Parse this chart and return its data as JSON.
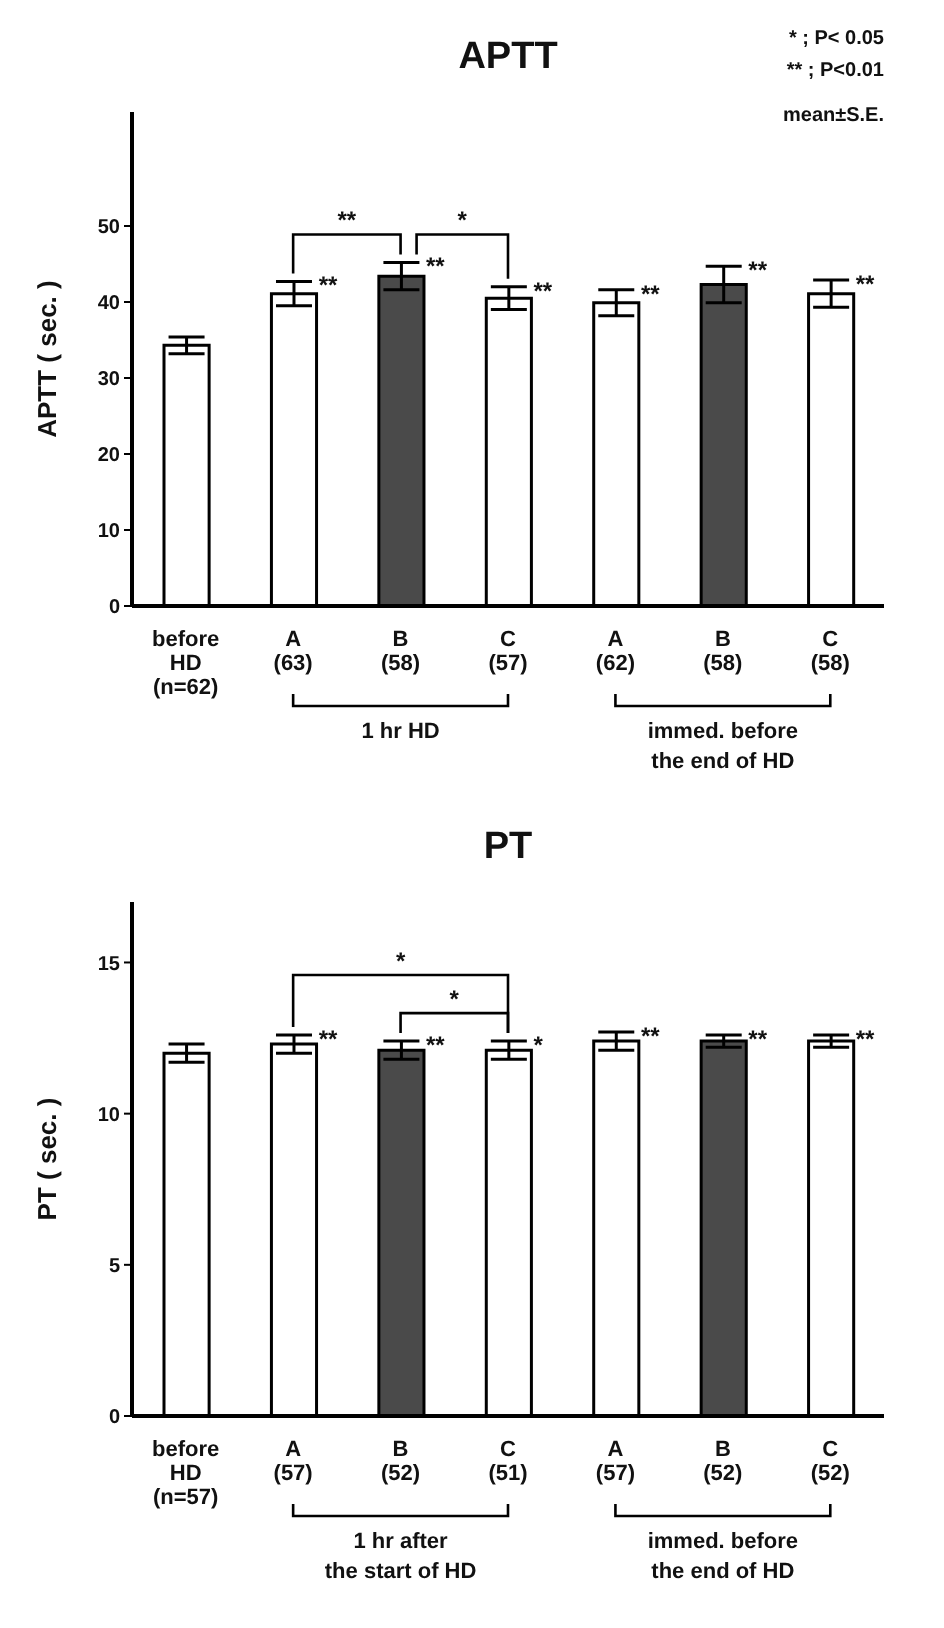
{
  "chart_data": [
    {
      "type": "bar",
      "title": "APTT",
      "ylabel": "APTT ( sec. )",
      "categories": [
        "before\nHD\n(n=62)",
        "A\n(63)",
        "B\n(58)",
        "C\n(57)",
        "A\n(62)",
        "B\n(58)",
        "C\n(58)"
      ],
      "values": [
        34.3,
        41.1,
        43.4,
        40.5,
        39.9,
        42.3,
        41.1
      ],
      "errors": [
        1.1,
        1.6,
        1.8,
        1.5,
        1.7,
        2.4,
        1.8
      ],
      "colors": [
        "#ffffff",
        "#ffffff",
        "#4a4a4a",
        "#ffffff",
        "#ffffff",
        "#4a4a4a",
        "#ffffff"
      ],
      "ylim": [
        0,
        65
      ],
      "yticks": [
        0,
        10,
        20,
        30,
        40,
        50
      ],
      "grid": false,
      "legend": false,
      "annotations": [
        "* ; P< 0.05",
        "** ; P<0.01",
        "mean±S.E.",
        "**",
        "*",
        "1 hr HD",
        "immed. before\nthe end of HD",
        {
          "text": "**",
          "x": "A\n(63)",
          "y": 42.7
        },
        {
          "text": "**",
          "x": "B\n(58)",
          "y": 45.2
        },
        {
          "text": "**",
          "x": "C\n(57)",
          "y": 42.0
        },
        {
          "text": "**",
          "x": "A\n(62)",
          "y": 41.6
        },
        {
          "text": "**",
          "x": "B\n(58)",
          "y": 44.7
        },
        {
          "text": "**",
          "x": "C\n(58)",
          "y": 42.9
        }
      ]
    },
    {
      "type": "bar",
      "title": "PT",
      "ylabel": "PT ( sec. )",
      "categories": [
        "before\nHD\n(n=57)",
        "A\n(57)",
        "B\n(52)",
        "C\n(51)",
        "A\n(57)",
        "B\n(52)",
        "C\n(52)"
      ],
      "values": [
        12.0,
        12.3,
        12.1,
        12.1,
        12.4,
        12.4,
        12.4
      ],
      "errors": [
        0.3,
        0.3,
        0.3,
        0.3,
        0.3,
        0.2,
        0.2
      ],
      "colors": [
        "#ffffff",
        "#ffffff",
        "#4a4a4a",
        "#ffffff",
        "#ffffff",
        "#4a4a4a",
        "#ffffff"
      ],
      "ylim": [
        0,
        17
      ],
      "yticks": [
        0,
        5,
        10,
        15
      ],
      "grid": false,
      "legend": false,
      "annotations": [
        "*",
        "*",
        "1 hr after\nthe start of HD",
        "immed. before\nthe end of HD",
        "**",
        "**",
        {
          "text": "**",
          "x": "A\n(57)",
          "y": 12.6
        },
        {
          "text": "**",
          "x": "B\n(52)",
          "y": 12.4
        },
        {
          "text": "*",
          "x": "C\n(51)",
          "y": 12.4
        },
        {
          "text": "**",
          "x": "C\n(52)",
          "y": 12.6
        }
      ]
    }
  ]
}
